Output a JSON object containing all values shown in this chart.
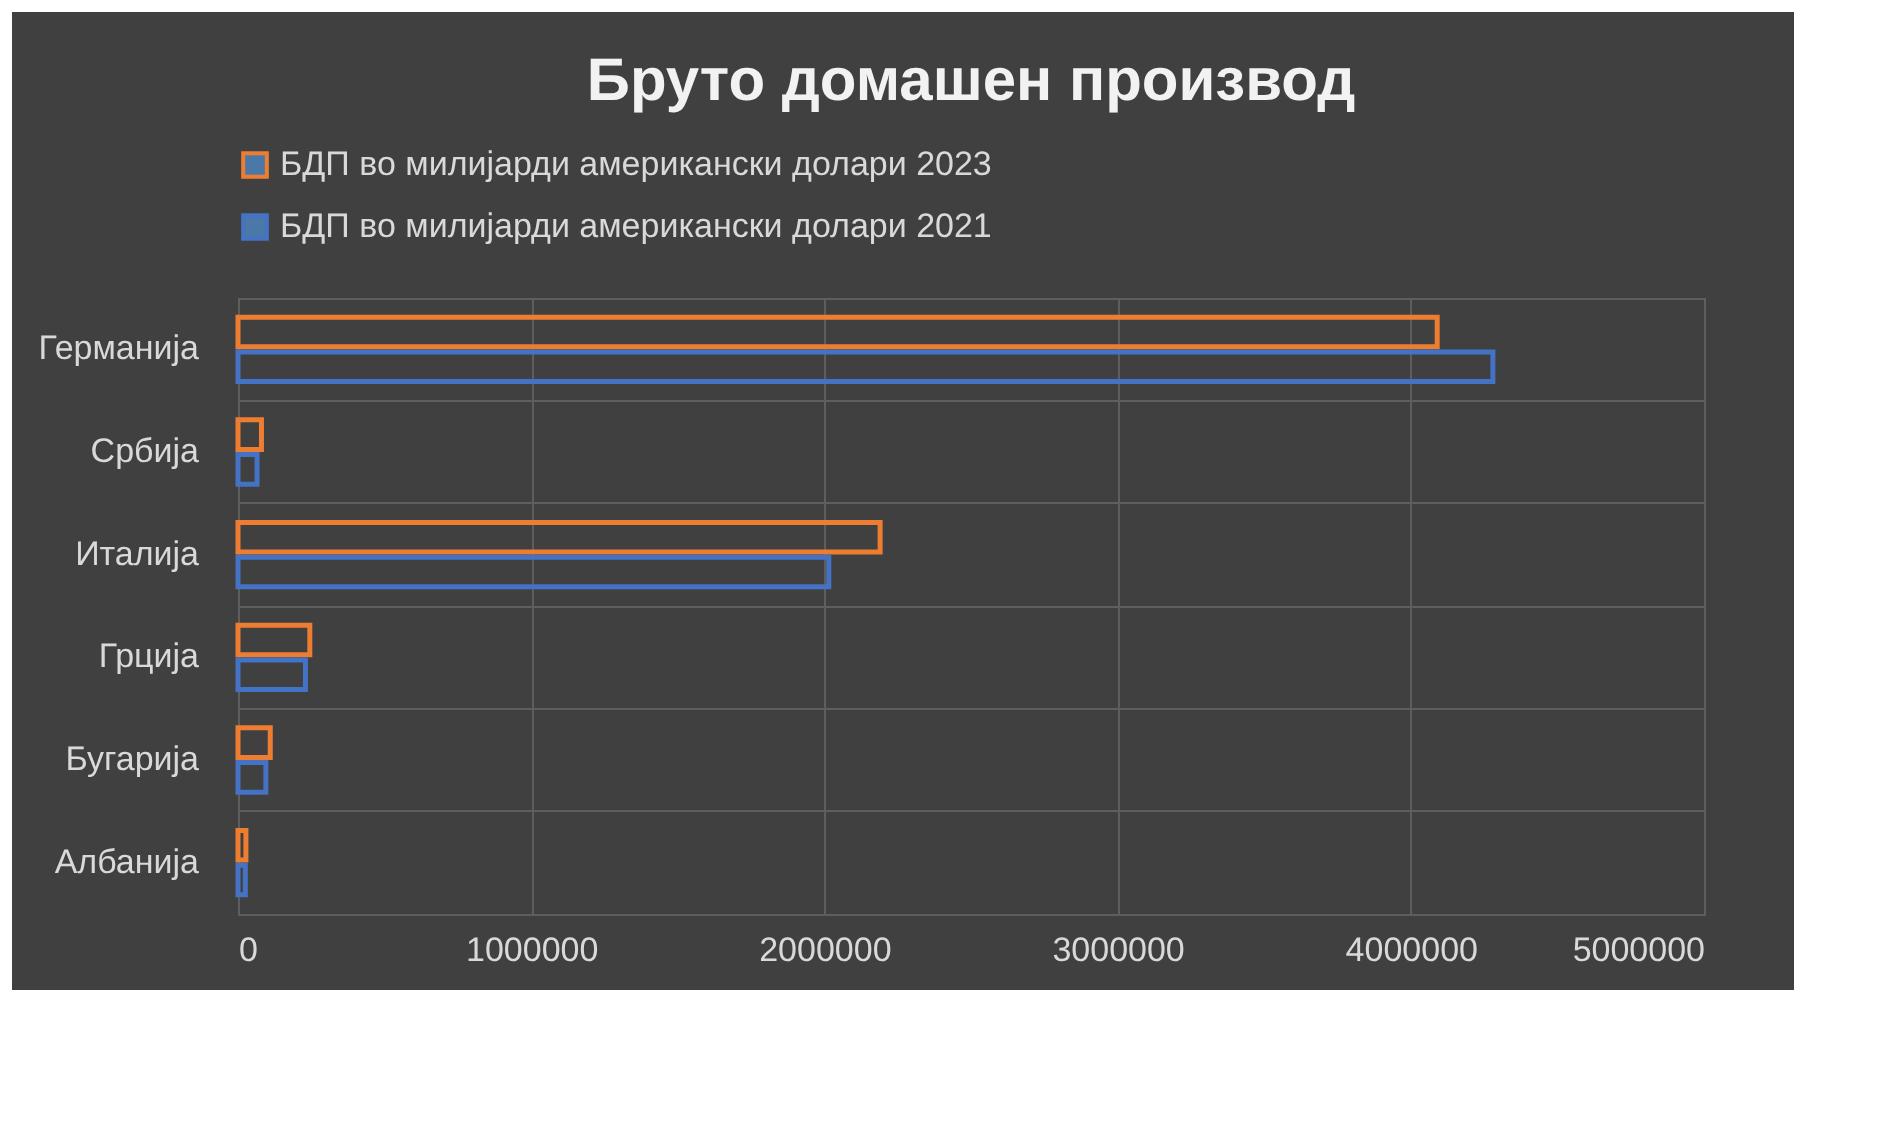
{
  "chart_data": {
    "type": "bar",
    "orientation": "horizontal",
    "title": "Бруто домашен производ",
    "categories": [
      "Германија",
      "Србија",
      "Италија",
      "Грција",
      "Бугарија",
      "Албанија"
    ],
    "series": [
      {
        "name": "БДП во милијарди американски долари 2023",
        "color": "#ed7d31",
        "values": [
          4090000,
          80000,
          2190000,
          245000,
          110000,
          27000
        ]
      },
      {
        "name": "БДП во милијарди американски долари 2021",
        "color": "#4472c4",
        "values": [
          4280000,
          65000,
          2015000,
          230000,
          95000,
          25000
        ]
      }
    ],
    "xlim": [
      0,
      5000000
    ],
    "xticks": [
      0,
      1000000,
      2000000,
      3000000,
      4000000,
      5000000
    ],
    "grid": true,
    "legend": "top"
  }
}
